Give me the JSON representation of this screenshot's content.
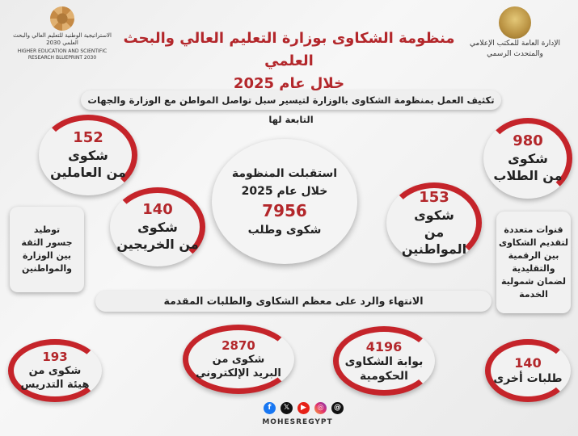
{
  "header": {
    "title_line1": "منظومة الشكاوى بوزارة التعليم العالي والبحث العلمي",
    "title_line2": "خلال عام 2025",
    "right_logo_line1": "الإدارة العامة للمكتب الإعلامي",
    "right_logo_line2": "والمتحدث الرسمي",
    "left_logo_ar": "الاستراتيجية الوطنية للتعليم العالي والبحث العلمي 2030",
    "left_logo_en": "HIGHER EDUCATION AND SCIENTIFIC RESEARCH BLUEPRINT 2030"
  },
  "top_banner": "تكثيف العمل بمنظومة الشكاوى بالوزارة لتيسير سبل تواصل المواطن مع الوزارة والجهات التابعة لها",
  "middle_banner": "الانتهاء والرد على معظم الشكاوى والطلبات المقدمة",
  "center": {
    "line1": "استقبلت المنظومة",
    "line2": "خلال عام 2025",
    "number": "7956",
    "line3": "شكوى وطلب"
  },
  "stats": {
    "students": {
      "number": "980",
      "label1": "شكوى",
      "label2": "من الطلاب"
    },
    "employees": {
      "number": "152",
      "label1": "شكوى",
      "label2": "من العاملين"
    },
    "graduates": {
      "number": "140",
      "label1": "شكوى",
      "label2": "من الخريجين"
    },
    "citizens": {
      "number": "153",
      "label1": "شكوى",
      "label2": "من المواطنين"
    },
    "staff": {
      "number": "193",
      "label1": "شكوى من",
      "label2": "هيئة التدريس"
    },
    "email": {
      "number": "2870",
      "label1": "شكوى من",
      "label2": "البريد الإلكتروني"
    },
    "portal": {
      "number": "4196",
      "label1": "بوابة الشكاوى",
      "label2": "الحكومية"
    },
    "other": {
      "number": "140",
      "label1": "طلبات أخرى"
    }
  },
  "side_boxes": {
    "left": [
      "توطيد",
      "جسور الثقة",
      "بين الوزارة",
      "والمواطنين"
    ],
    "right": [
      "قنوات متعددة",
      "لتقديم الشكاوى",
      "بين الرقمية",
      "والتقليدية",
      "لضمان شمولية",
      "الخدمة"
    ]
  },
  "social": {
    "icons": [
      "facebook-icon",
      "x-icon",
      "youtube-icon",
      "instagram-icon",
      "threads-icon"
    ],
    "handle": "MOHESREGYPT"
  }
}
